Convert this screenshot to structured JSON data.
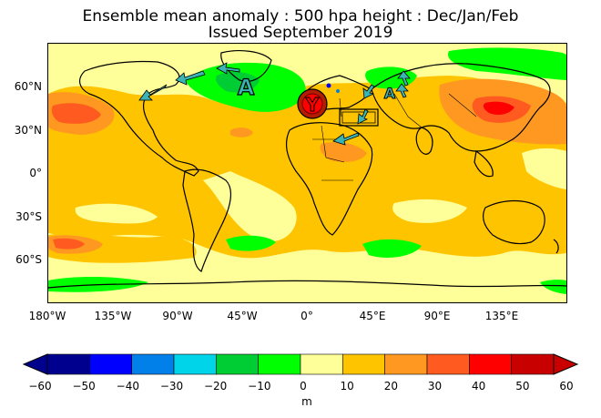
{
  "title": {
    "line1": "Ensemble mean anomaly : 500 hpa height : Dec/Jan/Feb",
    "line2": "Issued September 2019"
  },
  "map_labels": {
    "anticyclone_america": "A",
    "anticyclone_asia": "A",
    "cyclone_europe": "Y"
  },
  "axes": {
    "lat_ticks": [
      "60°N",
      "30°N",
      "0°",
      "30°S",
      "60°S"
    ],
    "lon_ticks": [
      "180°W",
      "135°W",
      "90°W",
      "45°W",
      "0°",
      "45°E",
      "90°E",
      "135°E"
    ]
  },
  "colorbar": {
    "ticks": [
      "−60",
      "−50",
      "−40",
      "−30",
      "−20",
      "−10",
      "0",
      "10",
      "20",
      "30",
      "40",
      "50",
      "60"
    ],
    "unit": "m",
    "colors": [
      "#00008f",
      "#0000ff",
      "#0080e8",
      "#00d4e8",
      "#00cc33",
      "#00ff00",
      "#ffff99",
      "#ffc400",
      "#ff9820",
      "#ff5a1f",
      "#ff0000",
      "#c80000"
    ]
  },
  "colors": {
    "ocean_background": "#ffff99",
    "arrow_fill": "#3cb4b4",
    "cyclone_ring": "#b41e00"
  }
}
